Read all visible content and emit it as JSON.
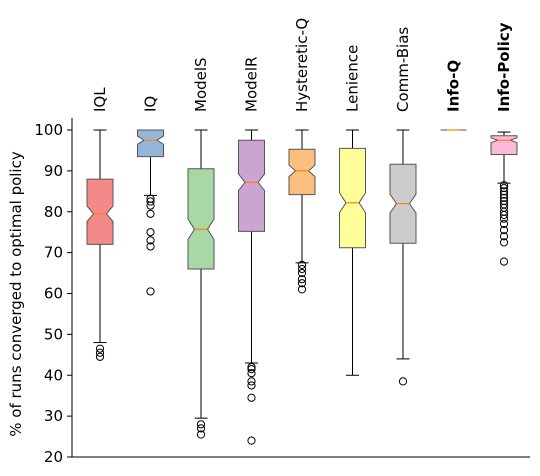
{
  "chart_data": {
    "type": "box",
    "ylabel": "% of runs converged to optimal policy",
    "ylim": [
      20,
      103
    ],
    "yticks": [
      20,
      30,
      40,
      50,
      60,
      70,
      80,
      90,
      100
    ],
    "notched": true,
    "grid": false,
    "categories": [
      "IQL",
      "IQ",
      "ModelS",
      "ModelR",
      "Hysteretic-Q",
      "Lenience",
      "Comm-Bias",
      "Info-Q",
      "Info-Policy"
    ],
    "bold_categories": [
      "Info-Q",
      "Info-Policy"
    ],
    "boxes": [
      {
        "name": "IQL",
        "color": "#f4898a",
        "q1": 72,
        "median": 79.5,
        "q3": 88,
        "notch": [
          77.6,
          81.4
        ],
        "whisker_low": 48,
        "whisker_high": 100,
        "outliers": [
          44.5,
          45.5,
          46.5
        ]
      },
      {
        "name": "IQ",
        "color": "#93b6d9",
        "q1": 93.5,
        "median": 97.5,
        "q3": 100,
        "notch": [
          96.5,
          98.5
        ],
        "whisker_low": 84,
        "whisker_high": 100,
        "outliers": [
          60.5,
          71.5,
          73,
          75,
          79.5,
          81.5,
          82.5,
          83.2
        ]
      },
      {
        "name": "ModelS",
        "color": "#a8d8a5",
        "q1": 66,
        "median": 75.7,
        "q3": 90.5,
        "notch": [
          73.2,
          78.2
        ],
        "whisker_low": 29.5,
        "whisker_high": 100,
        "outliers": [
          25.5,
          27,
          28
        ]
      },
      {
        "name": "ModelR",
        "color": "#cba4d2",
        "q1": 75.2,
        "median": 87.2,
        "q3": 97.5,
        "notch": [
          85.2,
          89.2
        ],
        "whisker_low": 43,
        "whisker_high": 100,
        "outliers": [
          24,
          34.5,
          37.5,
          38.5,
          40.5,
          41.5,
          42
        ]
      },
      {
        "name": "Hysteretic-Q",
        "color": "#fdbf80",
        "q1": 84.2,
        "median": 90,
        "q3": 95.3,
        "notch": [
          88.6,
          91.4
        ],
        "whisker_low": 67.5,
        "whisker_high": 100,
        "outliers": [
          61,
          62.5,
          63.5,
          65,
          66,
          67
        ]
      },
      {
        "name": "Lenience",
        "color": "#ffff99",
        "q1": 71.2,
        "median": 82.2,
        "q3": 95.5,
        "notch": [
          79.8,
          84.6
        ],
        "whisker_low": 40,
        "whisker_high": 100,
        "outliers": []
      },
      {
        "name": "Comm-Bias",
        "color": "#cccccc",
        "q1": 72.3,
        "median": 82,
        "q3": 91.6,
        "notch": [
          79.7,
          84.3
        ],
        "whisker_low": 44,
        "whisker_high": 100,
        "outliers": [
          38.5
        ]
      },
      {
        "name": "Info-Q",
        "color": "#fdbf80",
        "q1": 100,
        "median": 100,
        "q3": 100,
        "notch": [
          100,
          100
        ],
        "whisker_low": 100,
        "whisker_high": 100,
        "outliers": []
      },
      {
        "name": "Info-Policy",
        "color": "#fcb8d7",
        "q1": 94,
        "median": 97.5,
        "q3": 98.6,
        "notch": [
          96.9,
          98.1
        ],
        "whisker_low": 87,
        "whisker_high": 99.5,
        "outliers": [
          67.8,
          72.5,
          74,
          75.5,
          77,
          78.3,
          79.2,
          80,
          81,
          81.8,
          82.6,
          83.4,
          84.2,
          85,
          85.8,
          86.5
        ]
      }
    ]
  }
}
